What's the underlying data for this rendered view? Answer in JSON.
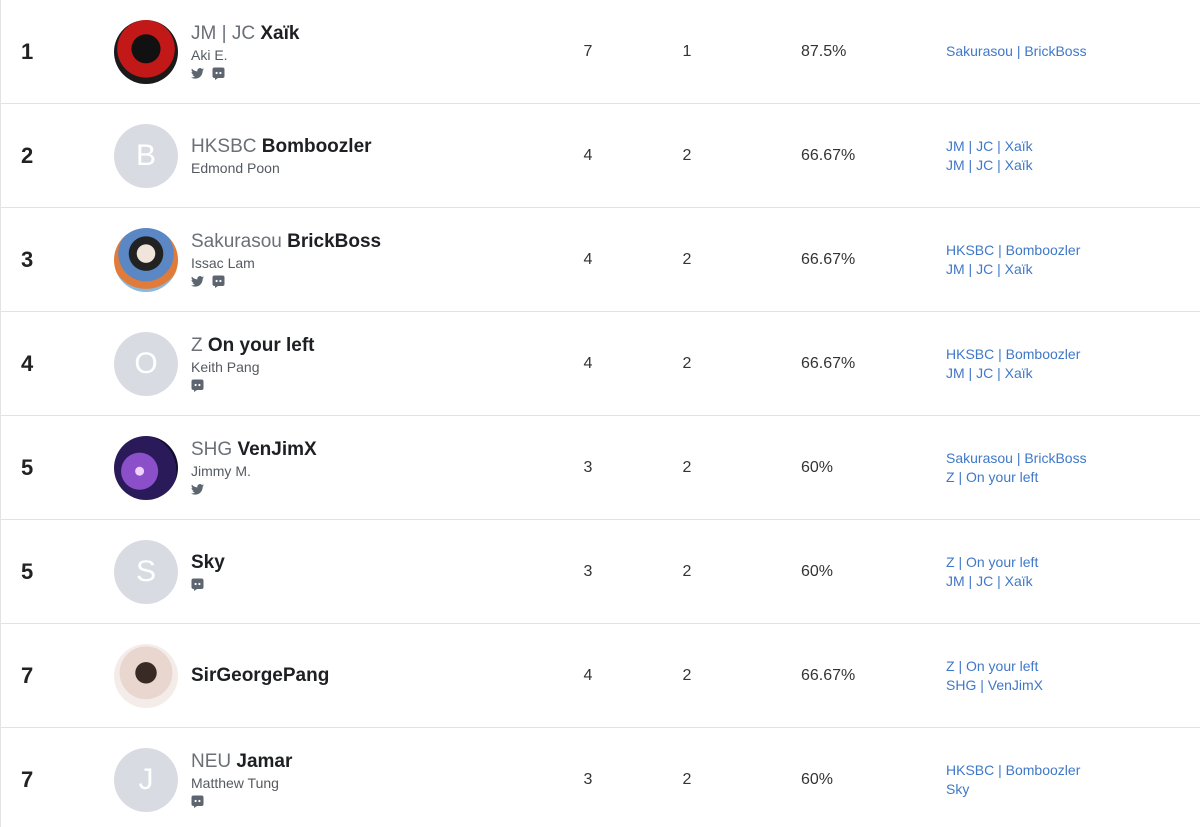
{
  "rows": [
    {
      "rank": 1,
      "tag": "JM | JC",
      "name": "Xaïk",
      "player": "Aki E.",
      "wins": 7,
      "losses": 1,
      "win_rate": "87.5%",
      "opponents": [
        "Sakurasou | BrickBoss"
      ]
    },
    {
      "rank": 2,
      "avatar": "B",
      "tag": "HKSBC",
      "name": "Bomboozler",
      "player": "Edmond Poon",
      "wins": 4,
      "losses": 2,
      "win_rate": "66.67%",
      "opponents": [
        "JM | JC | Xaïk",
        "JM | JC | Xaïk"
      ]
    },
    {
      "rank": 3,
      "tag": "Sakurasou",
      "name": "BrickBoss",
      "player": "Issac Lam",
      "wins": 4,
      "losses": 2,
      "win_rate": "66.67%",
      "opponents": [
        "HKSBC | Bomboozler",
        "JM | JC | Xaïk"
      ]
    },
    {
      "rank": 4,
      "avatar": "O",
      "tag": "Z",
      "name": "On your left",
      "player": "Keith Pang",
      "wins": 4,
      "losses": 2,
      "win_rate": "66.67%",
      "opponents": [
        "HKSBC | Bomboozler",
        "JM | JC | Xaïk"
      ]
    },
    {
      "rank": 5,
      "tag": "SHG",
      "name": "VenJimX",
      "player": "Jimmy M.",
      "wins": 3,
      "losses": 2,
      "win_rate": "60%",
      "opponents": [
        "Sakurasou | BrickBoss",
        "Z | On your left"
      ]
    },
    {
      "rank": 5,
      "avatar": "S",
      "name": "Sky",
      "wins": 3,
      "losses": 2,
      "win_rate": "60%",
      "opponents": [
        "Z | On your left",
        "JM | JC | Xaïk"
      ]
    },
    {
      "rank": 7,
      "name": "SirGeorgePang",
      "wins": 4,
      "losses": 2,
      "win_rate": "66.67%",
      "opponents": [
        "Z | On your left",
        "SHG | VenJimX"
      ]
    },
    {
      "rank": 7,
      "avatar": "J",
      "tag": "NEU",
      "name": "Jamar",
      "player": "Matthew Tung",
      "wins": 3,
      "losses": 2,
      "win_rate": "60%",
      "opponents": [
        "HKSBC | Bomboozler",
        "Sky"
      ]
    }
  ]
}
